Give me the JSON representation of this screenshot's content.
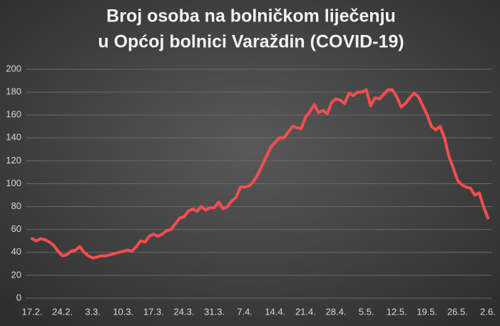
{
  "chart_data": {
    "type": "line",
    "title": [
      "Broj osoba na bolničkom liječenju",
      "u Općoj bolnici Varaždin (COVID-19)"
    ],
    "categories": [
      "17.2.",
      null,
      null,
      null,
      null,
      null,
      null,
      "24.2.",
      null,
      null,
      null,
      null,
      null,
      null,
      "3.3.",
      null,
      null,
      null,
      null,
      null,
      null,
      "10.3.",
      null,
      null,
      null,
      null,
      null,
      null,
      "17.3.",
      null,
      null,
      null,
      null,
      null,
      null,
      "24.3.",
      null,
      null,
      null,
      null,
      null,
      null,
      "31.3.",
      null,
      null,
      null,
      null,
      null,
      null,
      "7.4.",
      null,
      null,
      null,
      null,
      null,
      null,
      "14.4.",
      null,
      null,
      null,
      null,
      null,
      null,
      "21.4.",
      null,
      null,
      null,
      null,
      null,
      null,
      "28.4.",
      null,
      null,
      null,
      null,
      null,
      null,
      "5.5.",
      null,
      null,
      null,
      null,
      null,
      null,
      "12.5.",
      null,
      null,
      null,
      null,
      null,
      null,
      "19.5.",
      null,
      null,
      null,
      null,
      null,
      null,
      "26.5.",
      null,
      null,
      null,
      null,
      null,
      null,
      "2.6."
    ],
    "series": [
      {
        "color": "#ff4d4d",
        "values": [
          52,
          50,
          52,
          51,
          49,
          46,
          41,
          37,
          38,
          41,
          42,
          45,
          40,
          37,
          35,
          36,
          37,
          37,
          38,
          39,
          40,
          41,
          42,
          41,
          45,
          50,
          49,
          54,
          56,
          54,
          56,
          59,
          60,
          65,
          70,
          71,
          76,
          78,
          76,
          80,
          77,
          79,
          79,
          84,
          78,
          80,
          85,
          88,
          97,
          97,
          98,
          102,
          108,
          116,
          124,
          132,
          136,
          140,
          140,
          145,
          150,
          149,
          148,
          158,
          163,
          169,
          162,
          164,
          161,
          171,
          174,
          173,
          170,
          179,
          177,
          180,
          180,
          182,
          168,
          175,
          174,
          178,
          182,
          182,
          176,
          167,
          170,
          175,
          179,
          176,
          168,
          160,
          150,
          147,
          150,
          140,
          124,
          114,
          103,
          99,
          97,
          96,
          90,
          92,
          80,
          70
        ]
      }
    ],
    "ylim": [
      0,
      200
    ],
    "yticks": [
      0,
      20,
      40,
      60,
      80,
      100,
      120,
      140,
      160,
      180,
      200
    ],
    "grid": true
  }
}
